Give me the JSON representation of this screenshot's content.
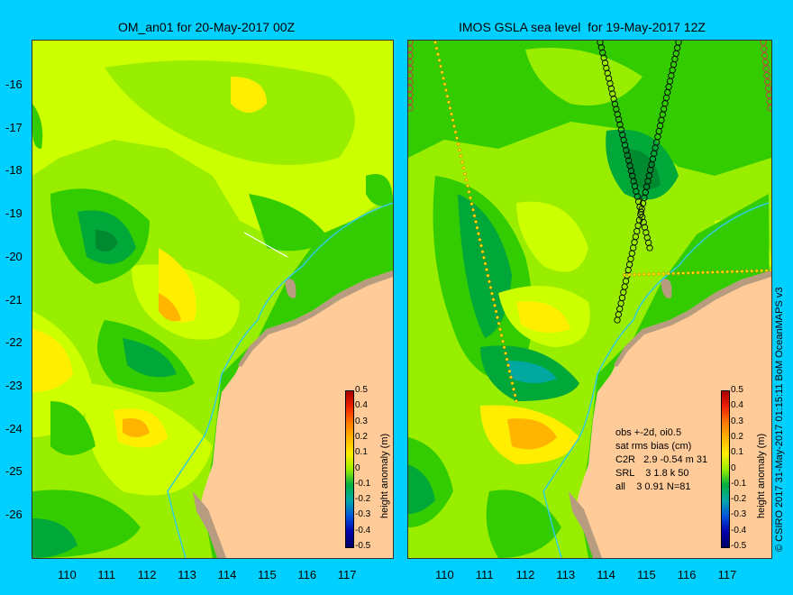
{
  "left_panel": {
    "title": "OM_an01 for 20-May-2017 00Z",
    "colorbar_label": "height anomaly (m)"
  },
  "right_panel": {
    "title": "IMOS GSLA sea level  for 19-May-2017 12Z",
    "colorbar_label": "height anomaly (m)",
    "stats": {
      "line1": "obs +-2d, oi0.5",
      "line2": "sat rms bias (cm)",
      "line3": "C2R   2.9 -0.54 m 31",
      "line4": "SRL    3 1.8 k 50",
      "line5": "all    3 0.91 N=81"
    }
  },
  "lat_ticks": [
    "-16",
    "-17",
    "-18",
    "-19",
    "-20",
    "-21",
    "-22",
    "-23",
    "-24",
    "-25",
    "-26"
  ],
  "lon_ticks": [
    "110",
    "111",
    "112",
    "113",
    "114",
    "115",
    "116",
    "117"
  ],
  "colorbar_ticks": [
    "0.5",
    "0.4",
    "0.3",
    "0.2",
    "0.1",
    "0",
    "-0.1",
    "-0.2",
    "-0.3",
    "-0.4",
    "-0.5"
  ],
  "credit": "© CSIRO 2017   31-May-2017 01:15:11 BoM OceanMAPS v3",
  "colors": {
    "background": "#00d0ff",
    "land": "#ffcc99",
    "coast_shelf": "#b89c80",
    "isobath": "#33ccdd",
    "anom_dark_green": "#00a83a",
    "anom_green": "#33cc00",
    "anom_lime": "#99ee00",
    "anom_yellowgreen": "#ccff00",
    "anom_yellow": "#ffee00",
    "anom_orange": "#ffb400"
  }
}
